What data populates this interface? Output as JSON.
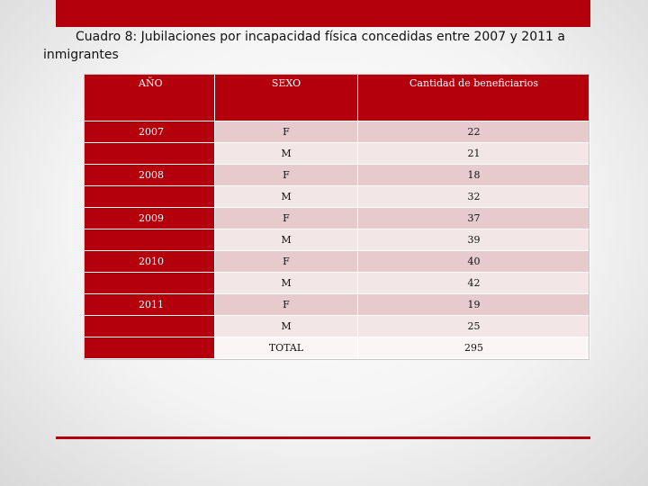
{
  "title": "Cuadro 8: Jubilaciones por incapacidad física concedidas entre 2007 y 2011 a inmigrantes",
  "colors": {
    "accent": "#b4000c",
    "row_dark": "#e7cacb",
    "row_light": "#f3e6e6"
  },
  "table": {
    "headers": [
      "AÑO",
      "SEXO",
      "Cantidad de beneficiarios"
    ],
    "rows": [
      {
        "year": "2007",
        "sex": "F",
        "count": "22"
      },
      {
        "year": "",
        "sex": "M",
        "count": "21"
      },
      {
        "year": "2008",
        "sex": "F",
        "count": "18"
      },
      {
        "year": "",
        "sex": "M",
        "count": "32"
      },
      {
        "year": "2009",
        "sex": "F",
        "count": "37"
      },
      {
        "year": "",
        "sex": "M",
        "count": "39"
      },
      {
        "year": "2010",
        "sex": "F",
        "count": "40"
      },
      {
        "year": "",
        "sex": "M",
        "count": "42"
      },
      {
        "year": "2011",
        "sex": "F",
        "count": "19"
      },
      {
        "year": "",
        "sex": "M",
        "count": "25"
      },
      {
        "year": "",
        "sex": "TOTAL",
        "count": "295"
      }
    ]
  }
}
